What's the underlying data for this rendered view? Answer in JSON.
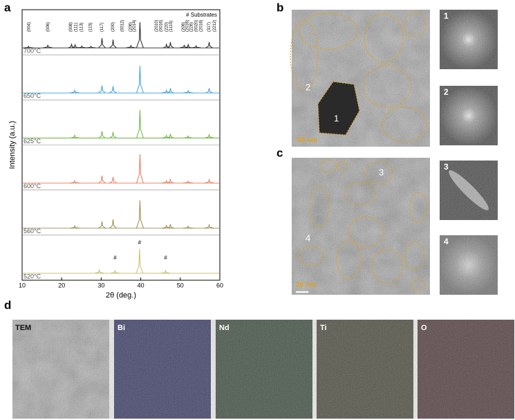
{
  "chart_data": {
    "type": "xrd",
    "panel_label": "a",
    "x_label": "2θ (deg.)",
    "y_label": "Intensity (a.u.)",
    "legend_note": "# Substrates",
    "xlim": [
      10,
      60
    ],
    "xticks": [
      10,
      20,
      30,
      40,
      50,
      60
    ],
    "peak_labels": [
      {
        "label": "(004)",
        "x": 11.7
      },
      {
        "label": "(006)",
        "x": 16.5
      },
      {
        "label": "(008)",
        "x": 22.3
      },
      {
        "label": "(111)",
        "x": 23.6
      },
      {
        "label": "(113)",
        "x": 25.0
      },
      {
        "label": "(115)",
        "x": 27.3
      },
      {
        "label": "(117)",
        "x": 30.2
      },
      {
        "label": "(200)",
        "x": 33.0
      },
      {
        "label": "(0012)",
        "x": 35.3
      },
      {
        "label": "(206)",
        "x": 37.4
      },
      {
        "label": "(2014)",
        "x": 38.4
      },
      {
        "label": "(2010)",
        "x": 44.0
      },
      {
        "label": "(0016)",
        "x": 45.1
      },
      {
        "label": "(220)",
        "x": 46.5
      },
      {
        "label": "(1119)",
        "x": 47.7
      },
      {
        "label": "(208)",
        "x": 50.8
      },
      {
        "label": "(2016)",
        "x": 51.8
      },
      {
        "label": "(226)",
        "x": 52.8
      },
      {
        "label": "(0020)",
        "x": 54.0
      },
      {
        "label": "(2018)",
        "x": 55.3
      },
      {
        "label": "(317)",
        "x": 57.3
      },
      {
        "label": "(2212)",
        "x": 58.7
      }
    ],
    "series": [
      {
        "name": "700°C",
        "color": "#222222",
        "x": [
          11.6,
          16.5,
          22.5,
          23.4,
          25.1,
          27.4,
          30.2,
          33.0,
          37.5,
          39.8,
          46.5,
          47.5,
          51.0,
          52.0,
          54.0,
          57.3
        ],
        "values": [
          6,
          10,
          14,
          12,
          7,
          6,
          38,
          32,
          9,
          100,
          14,
          22,
          10,
          13,
          8,
          22
        ]
      },
      {
        "name": "650°C",
        "color": "#3aa0d8",
        "x": [
          23.3,
          30.2,
          33.0,
          39.8,
          46.5,
          47.5,
          52.0,
          57.3
        ],
        "values": [
          8,
          22,
          20,
          80,
          8,
          14,
          7,
          14
        ]
      },
      {
        "name": "625°C",
        "color": "#6db33f",
        "x": [
          23.3,
          30.2,
          33.0,
          39.8,
          46.5,
          47.5,
          52.0,
          57.3
        ],
        "values": [
          8,
          20,
          18,
          82,
          8,
          12,
          6,
          10
        ]
      },
      {
        "name": "600°C",
        "color": "#e8795a",
        "x": [
          23.3,
          30.2,
          33.0,
          39.8,
          46.5,
          47.5,
          52.0,
          57.3
        ],
        "values": [
          7,
          22,
          18,
          85,
          7,
          12,
          6,
          10
        ]
      },
      {
        "name": "560°C",
        "color": "#9a8a50",
        "x": [
          23.3,
          30.2,
          33.0,
          39.8,
          46.5,
          47.5,
          52.0,
          57.3
        ],
        "values": [
          7,
          20,
          26,
          82,
          8,
          12,
          6,
          10
        ]
      },
      {
        "name": "520°C",
        "color": "#c8c070",
        "x": [
          29.5,
          33.5,
          39.7,
          46.3
        ],
        "values": [
          10,
          8,
          72,
          8
        ]
      }
    ],
    "markers": [
      {
        "label": "#",
        "x": 33.5
      },
      {
        "label": "#",
        "x": 39.7
      },
      {
        "label": "#",
        "x": 46.3
      }
    ]
  },
  "panel_b": {
    "label": "b",
    "particles": [
      "1",
      "2"
    ],
    "scale_bar": "50 nm",
    "fft": [
      "1",
      "2"
    ]
  },
  "panel_c": {
    "label": "c",
    "particles": [
      "3",
      "4"
    ],
    "scale_bar": "20 nm",
    "fft": [
      "3",
      "4"
    ]
  },
  "panel_d": {
    "label": "d",
    "maps": [
      "TEM",
      "Bi",
      "Nd",
      "Ti",
      "O"
    ]
  }
}
